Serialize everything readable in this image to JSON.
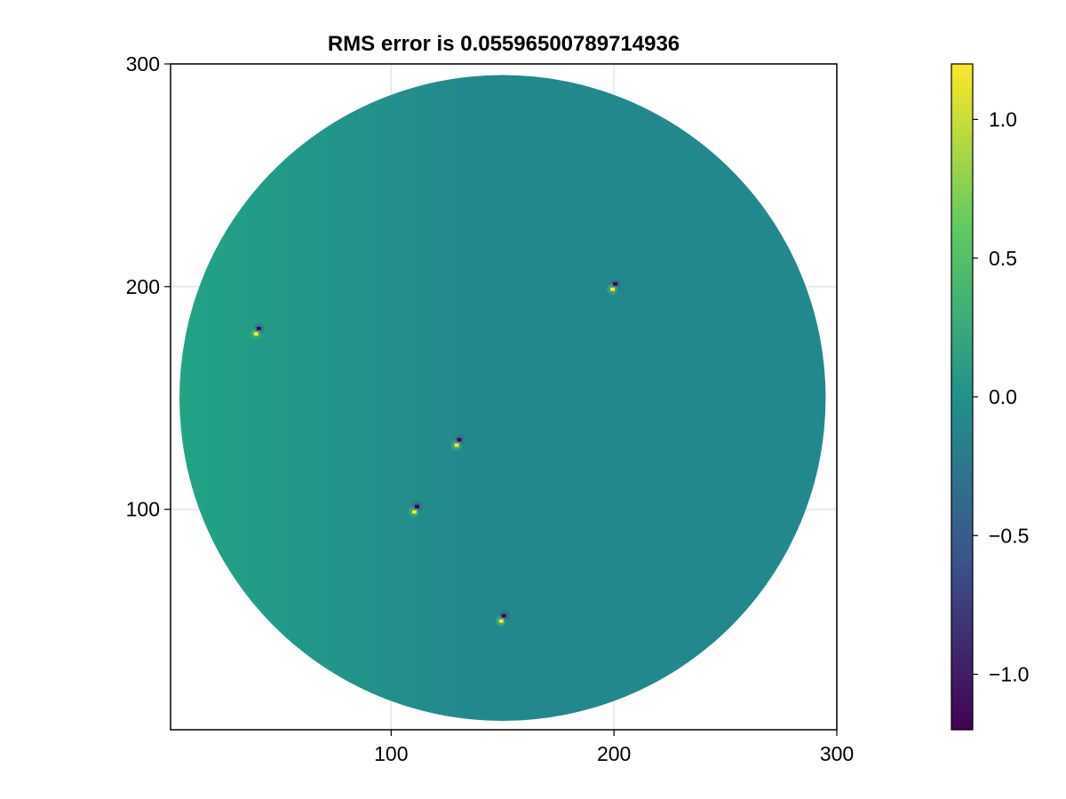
{
  "chart_data": {
    "type": "heatmap",
    "title": "RMS error is 0.05596500789714936",
    "xlabel": "",
    "ylabel": "",
    "xlim": [
      1,
      300
    ],
    "ylim": [
      1,
      300
    ],
    "grid": true,
    "x_ticks": [
      100,
      200,
      300
    ],
    "y_ticks": [
      100,
      200,
      300
    ],
    "x_tick_labels": [
      "100",
      "200",
      "300"
    ],
    "y_tick_labels": [
      "100",
      "200",
      "300"
    ],
    "colormap": "viridis",
    "color_range": [
      -1.2,
      1.2
    ],
    "colorbar_ticks": [
      1.0,
      0.5,
      0.0,
      -0.5,
      -1.0
    ],
    "colorbar_tick_labels": [
      "1.0",
      "0.5",
      "0.0",
      "−0.5",
      "−1.0"
    ],
    "domain": {
      "shape": "circle",
      "center": [
        150,
        150
      ],
      "radius": 145
    },
    "background_value": 0.0,
    "point_sources": [
      {
        "x": 40,
        "y": 180
      },
      {
        "x": 200,
        "y": 200
      },
      {
        "x": 130,
        "y": 130
      },
      {
        "x": 111,
        "y": 100
      },
      {
        "x": 150,
        "y": 51
      }
    ],
    "colors": {
      "viridis_stops": [
        "#440154",
        "#3b528b",
        "#21918c",
        "#5ec962",
        "#fde725"
      ],
      "field": "#23888e",
      "field_left": "#22a384",
      "grid": "#e5e5e5"
    }
  }
}
